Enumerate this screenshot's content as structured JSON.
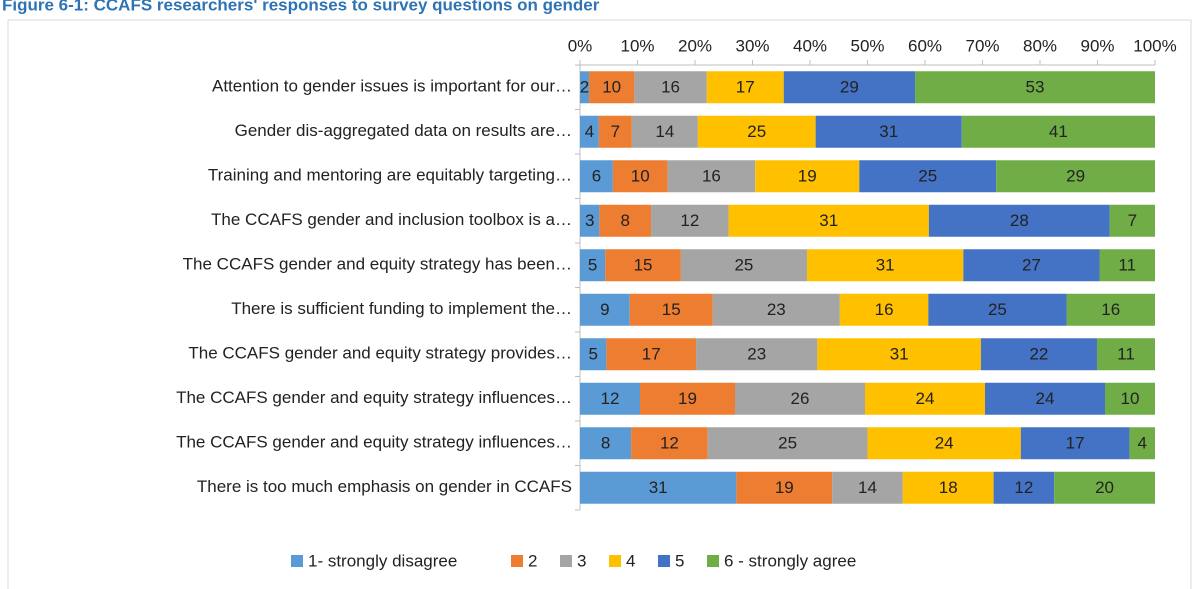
{
  "chart_data": {
    "type": "bar",
    "orientation": "horizontal",
    "stacked": "percent",
    "title": "Figure 6-1: CCAFS researchers' responses to survey questions on gender",
    "categories": [
      "Attention to gender issues is important for our…",
      "Gender dis-aggregated data on results are…",
      "Training and mentoring are equitably targeting…",
      "The CCAFS gender and inclusion toolbox is a…",
      "The CCAFS gender and equity strategy has been…",
      "There is sufficient funding to implement the…",
      "The CCAFS gender and equity strategy provides…",
      "The CCAFS gender and equity strategy influences…",
      "The CCAFS gender and equity strategy influences…",
      "There is too much emphasis on gender in CCAFS"
    ],
    "series": [
      {
        "name": "1- strongly disagree",
        "color": "#5b9bd5",
        "values": [
          2,
          4,
          6,
          3,
          5,
          9,
          5,
          12,
          8,
          31
        ]
      },
      {
        "name": "2",
        "color": "#ed7d31",
        "values": [
          10,
          7,
          10,
          8,
          15,
          15,
          17,
          19,
          12,
          19
        ]
      },
      {
        "name": "3",
        "color": "#a5a5a5",
        "values": [
          16,
          14,
          16,
          12,
          25,
          23,
          23,
          26,
          25,
          14
        ]
      },
      {
        "name": "4",
        "color": "#ffc000",
        "values": [
          17,
          25,
          19,
          31,
          31,
          16,
          31,
          24,
          24,
          18
        ]
      },
      {
        "name": "5",
        "color": "#4472c4",
        "values": [
          29,
          31,
          25,
          28,
          27,
          25,
          22,
          24,
          17,
          12
        ]
      },
      {
        "name": "6 - strongly agree",
        "color": "#70ad47",
        "values": [
          53,
          41,
          29,
          7,
          11,
          16,
          11,
          10,
          4,
          20
        ]
      }
    ],
    "xlim": [
      0,
      100
    ],
    "xticks": [
      {
        "value": 0,
        "label": "0%"
      },
      {
        "value": 10,
        "label": "10%"
      },
      {
        "value": 20,
        "label": "20%"
      },
      {
        "value": 30,
        "label": "30%"
      },
      {
        "value": 40,
        "label": "40%"
      },
      {
        "value": 50,
        "label": "50%"
      },
      {
        "value": 60,
        "label": "60%"
      },
      {
        "value": 70,
        "label": "70%"
      },
      {
        "value": 80,
        "label": "80%"
      },
      {
        "value": 90,
        "label": "90%"
      },
      {
        "value": 100,
        "label": "100%"
      }
    ],
    "legend": "bottom"
  }
}
